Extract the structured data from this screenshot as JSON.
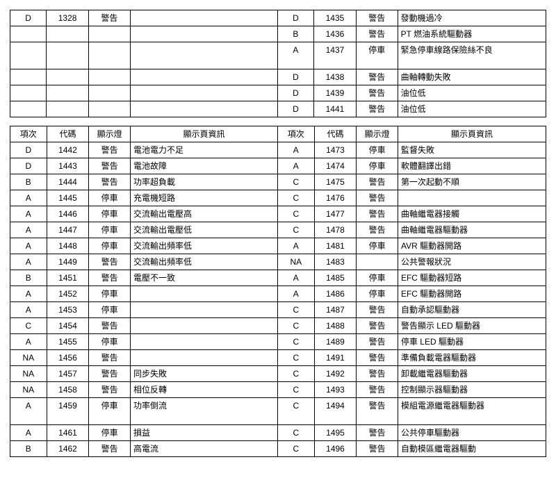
{
  "headers": {
    "item": "項次",
    "code": "代碼",
    "light": "顯示燈",
    "desc": "顯示頁資訊"
  },
  "top_table": {
    "rows": [
      {
        "l_item": "D",
        "l_code": "1328",
        "l_light": "警告",
        "l_desc": "",
        "r_item": "D",
        "r_code": "1435",
        "r_light": "警告",
        "r_desc": "發動機過冷",
        "tall": false
      },
      {
        "l_item": "",
        "l_code": "",
        "l_light": "",
        "l_desc": "",
        "r_item": "B",
        "r_code": "1436",
        "r_light": "警告",
        "r_desc": "PT 燃油系統驅動器",
        "tall": false
      },
      {
        "l_item": "",
        "l_code": "",
        "l_light": "",
        "l_desc": "",
        "r_item": "A",
        "r_code": "1437",
        "r_light": "停車",
        "r_desc": "緊急停車線路保險絲不良",
        "tall": true
      },
      {
        "l_item": "",
        "l_code": "",
        "l_light": "",
        "l_desc": "",
        "r_item": "D",
        "r_code": "1438",
        "r_light": "警告",
        "r_desc": "曲軸轉動失敗",
        "tall": false
      },
      {
        "l_item": "",
        "l_code": "",
        "l_light": "",
        "l_desc": "",
        "r_item": "D",
        "r_code": "1439",
        "r_light": "警告",
        "r_desc": "油位低",
        "tall": false
      },
      {
        "l_item": "",
        "l_code": "",
        "l_light": "",
        "l_desc": "",
        "r_item": "D",
        "r_code": "1441",
        "r_light": "警告",
        "r_desc": "油位低",
        "tall": false
      }
    ]
  },
  "bottom_table": {
    "rows": [
      {
        "l_item": "D",
        "l_code": "1442",
        "l_light": "警告",
        "l_desc": "電池電力不足",
        "r_item": "A",
        "r_code": "1473",
        "r_light": "停車",
        "r_desc": "監督失敗",
        "tall": false
      },
      {
        "l_item": "D",
        "l_code": "1443",
        "l_light": "警告",
        "l_desc": "電池故障",
        "r_item": "A",
        "r_code": "1474",
        "r_light": "停車",
        "r_desc": "軟體翻譯出錯",
        "tall": false
      },
      {
        "l_item": "B",
        "l_code": "1444",
        "l_light": "警告",
        "l_desc": "功率超負載",
        "r_item": "C",
        "r_code": "1475",
        "r_light": "警告",
        "r_desc": "第一次起動不順",
        "tall": false
      },
      {
        "l_item": "A",
        "l_code": "1445",
        "l_light": "停車",
        "l_desc": "充電機短路",
        "r_item": "C",
        "r_code": "1476",
        "r_light": "警告",
        "r_desc": "",
        "tall": false
      },
      {
        "l_item": "A",
        "l_code": "1446",
        "l_light": "停車",
        "l_desc": "交流輸出電壓高",
        "r_item": "C",
        "r_code": "1477",
        "r_light": "警告",
        "r_desc": "曲軸繼電器接觸",
        "tall": false
      },
      {
        "l_item": "A",
        "l_code": "1447",
        "l_light": "停車",
        "l_desc": "交流輸出電壓低",
        "r_item": "C",
        "r_code": "1478",
        "r_light": "警告",
        "r_desc": "曲軸繼電器驅動器",
        "tall": false
      },
      {
        "l_item": "A",
        "l_code": "1448",
        "l_light": "停車",
        "l_desc": "交流輸出頻率低",
        "r_item": "A",
        "r_code": "1481",
        "r_light": "停車",
        "r_desc": "AVR 驅動器開路",
        "tall": false
      },
      {
        "l_item": "A",
        "l_code": "1449",
        "l_light": "警告",
        "l_desc": "交流輸出頻率低",
        "r_item": "NA",
        "r_code": "1483",
        "r_light": "",
        "r_desc": "公共警報狀況",
        "tall": false
      },
      {
        "l_item": "B",
        "l_code": "1451",
        "l_light": "警告",
        "l_desc": "電壓不一致",
        "r_item": "A",
        "r_code": "1485",
        "r_light": "停車",
        "r_desc": "EFC 驅動器短路",
        "tall": false
      },
      {
        "l_item": "A",
        "l_code": "1452",
        "l_light": "停車",
        "l_desc": "",
        "r_item": "A",
        "r_code": "1486",
        "r_light": "停車",
        "r_desc": "EFC 驅動器開路",
        "tall": false
      },
      {
        "l_item": "A",
        "l_code": "1453",
        "l_light": "停車",
        "l_desc": "",
        "r_item": "C",
        "r_code": "1487",
        "r_light": "警告",
        "r_desc": "自動承認驅動器",
        "tall": false
      },
      {
        "l_item": "C",
        "l_code": "1454",
        "l_light": "警告",
        "l_desc": "",
        "r_item": "C",
        "r_code": "1488",
        "r_light": "警告",
        "r_desc": "警告顯示 LED 驅動器",
        "tall": false
      },
      {
        "l_item": "A",
        "l_code": "1455",
        "l_light": "停車",
        "l_desc": "",
        "r_item": "C",
        "r_code": "1489",
        "r_light": "警告",
        "r_desc": "停車 LED 驅動器",
        "tall": false
      },
      {
        "l_item": "NA",
        "l_code": "1456",
        "l_light": "警告",
        "l_desc": "",
        "r_item": "C",
        "r_code": "1491",
        "r_light": "警告",
        "r_desc": "準備負載電器驅動器",
        "tall": false
      },
      {
        "l_item": "NA",
        "l_code": "1457",
        "l_light": "警告",
        "l_desc": "同步失敗",
        "r_item": "C",
        "r_code": "1492",
        "r_light": "警告",
        "r_desc": "卸載繼電器驅動器",
        "tall": false
      },
      {
        "l_item": "NA",
        "l_code": "1458",
        "l_light": "警告",
        "l_desc": "相位反轉",
        "r_item": "C",
        "r_code": "1493",
        "r_light": "警告",
        "r_desc": "控制顯示器驅動器",
        "tall": false
      },
      {
        "l_item": "A",
        "l_code": "1459",
        "l_light": "停車",
        "l_desc": "功率倒流",
        "r_item": "C",
        "r_code": "1494",
        "r_light": "警告",
        "r_desc": "模組電源繼電器驅動器",
        "tall": true
      },
      {
        "l_item": "A",
        "l_code": "1461",
        "l_light": "停車",
        "l_desc": "損益",
        "r_item": "C",
        "r_code": "1495",
        "r_light": "警告",
        "r_desc": "公共停車驅動器",
        "tall": false
      },
      {
        "l_item": "B",
        "l_code": "1462",
        "l_light": "警告",
        "l_desc": "高電流",
        "r_item": "C",
        "r_code": "1496",
        "r_light": "警告",
        "r_desc": "自動模區繼電器驅動",
        "tall": false
      }
    ]
  }
}
